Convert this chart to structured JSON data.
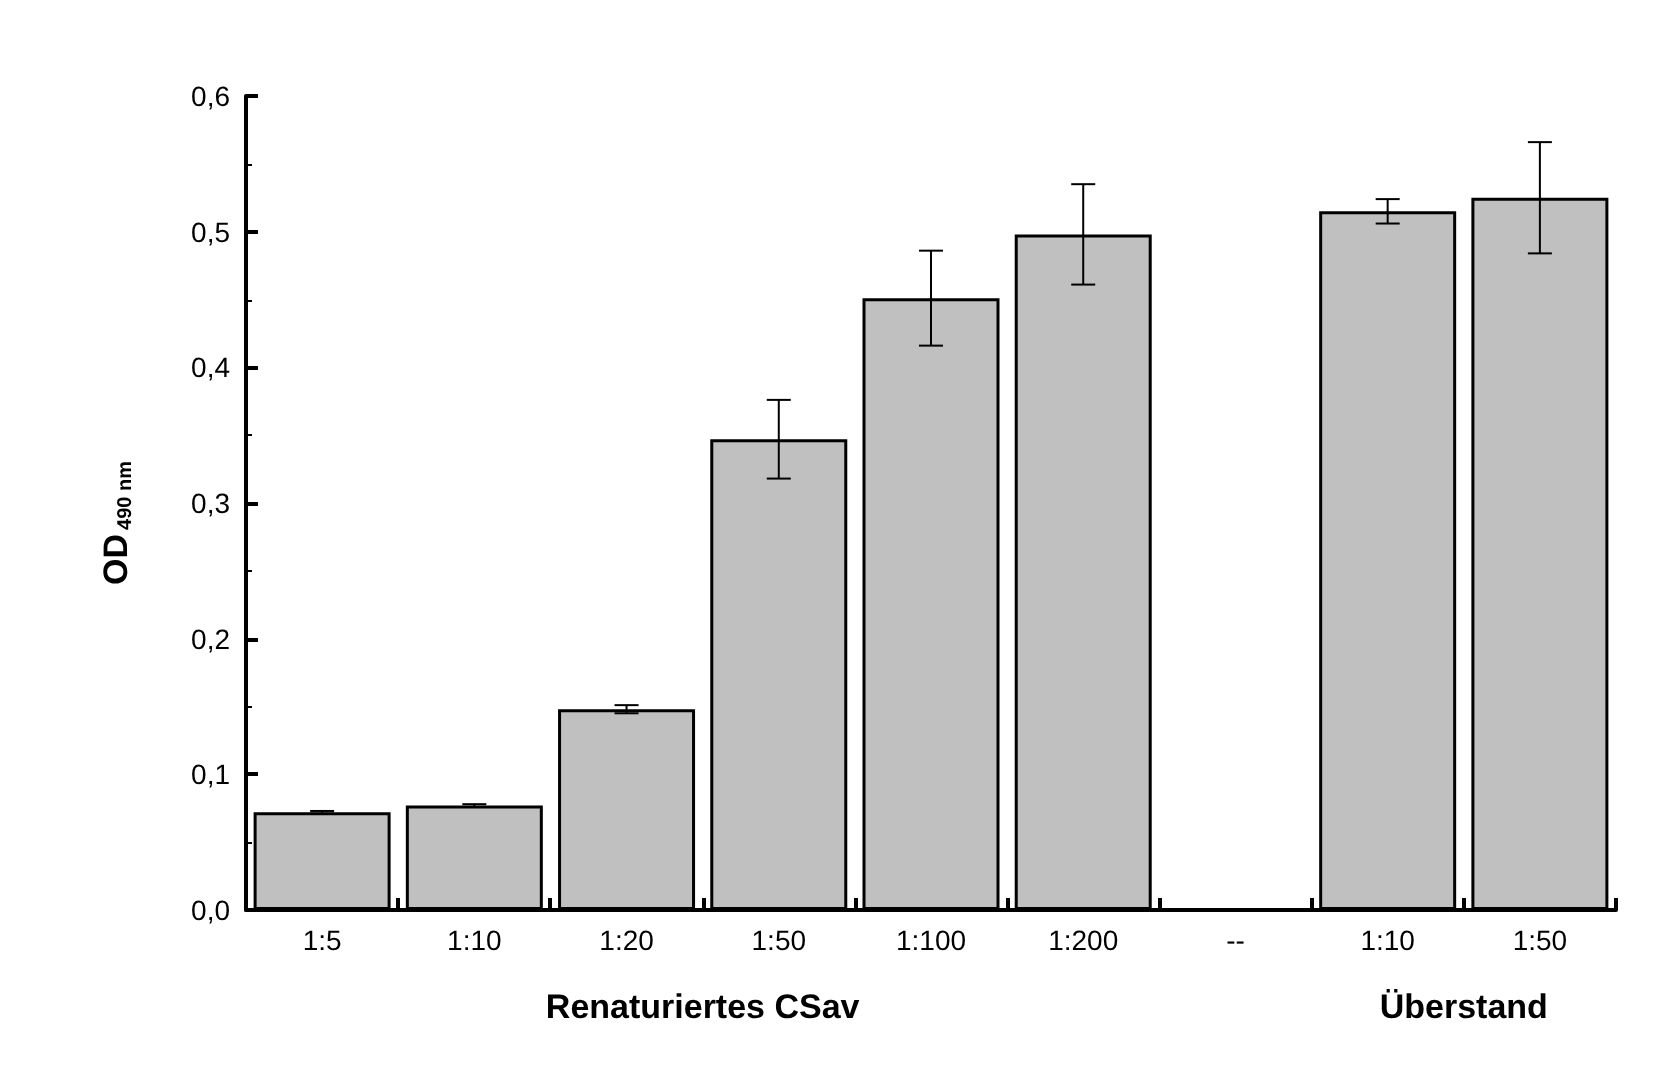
{
  "chart_data": {
    "type": "bar",
    "ylabel": "OD$_{490 nm}$",
    "xlabel": "Renaturiertes CSav",
    "annotations": [
      "Überstand"
    ],
    "categories": [
      "1:5",
      "1:10",
      "1:20",
      "1:50",
      "1:100",
      "1:200",
      "--",
      "1:10",
      "1:50"
    ],
    "values": [
      0.072,
      0.077,
      0.148,
      0.347,
      0.451,
      0.498,
      null,
      0.515,
      0.525
    ],
    "errors": [
      0.001,
      0.001,
      0.003,
      0.029,
      0.035,
      0.037,
      null,
      0.009,
      0.041
    ],
    "color": "#c0c0c0",
    "ylim": [
      0,
      0.6
    ],
    "yticks": [
      {
        "value": 0,
        "label": "0,0"
      },
      {
        "value": 0.1,
        "label": "0,1"
      },
      {
        "value": 0.2,
        "label": "0,2"
      },
      {
        "value": 0.3,
        "label": "0,3"
      },
      {
        "value": 0.4,
        "label": "0,4"
      },
      {
        "value": 0.5,
        "label": "0,5"
      },
      {
        "value": 0.6,
        "label": "0,6"
      }
    ],
    "grid": false
  }
}
